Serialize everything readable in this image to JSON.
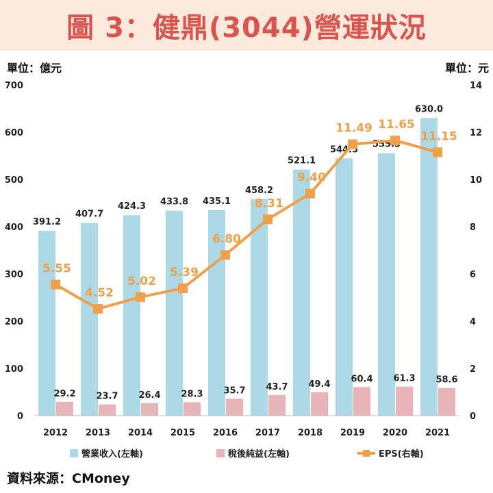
{
  "title": "圖 3：健鼎(3044)營運狀況",
  "unit_left": "單位：億元",
  "unit_right": "單位：元",
  "source": "資料來源：CMoney",
  "colors": {
    "revenue": "#add8e6",
    "net_income": "#e8b4b8",
    "eps": "#f0a04b"
  },
  "chart_data": {
    "type": "bar",
    "categories": [
      "2012",
      "2013",
      "2014",
      "2015",
      "2016",
      "2017",
      "2018",
      "2019",
      "2020",
      "2021"
    ],
    "series": [
      {
        "name": "營業收入(左軸)",
        "axis": "left",
        "type": "bar",
        "values": [
          391.2,
          407.7,
          424.3,
          433.8,
          435.1,
          458.2,
          521.1,
          544.5,
          555.5,
          630.0
        ],
        "labels": [
          "391.2",
          "407.7",
          "424.3",
          "433.8",
          "435.1",
          "458.2",
          "521.1",
          "544.5",
          "555.5",
          "630.0"
        ]
      },
      {
        "name": "稅後純益(左軸)",
        "axis": "left",
        "type": "bar",
        "values": [
          29.2,
          23.7,
          26.4,
          28.3,
          35.7,
          43.7,
          49.4,
          60.4,
          61.3,
          58.6
        ],
        "labels": [
          "29.2",
          "23.7",
          "26.4",
          "28.3",
          "35.7",
          "43.7",
          "49.4",
          "60.4",
          "61.3",
          "58.6"
        ]
      },
      {
        "name": "EPS(右軸)",
        "axis": "right",
        "type": "line",
        "values": [
          5.55,
          4.52,
          5.02,
          5.39,
          6.8,
          8.31,
          9.4,
          11.49,
          11.65,
          11.15
        ],
        "labels": [
          "5.55",
          "4.52",
          "5.02",
          "5.39",
          "6.80",
          "8.31",
          "9.40",
          "11.49",
          "11.65",
          "11.15"
        ]
      }
    ],
    "ylim_left": [
      0,
      700
    ],
    "yticks_left": [
      "0",
      "100",
      "200",
      "300",
      "400",
      "500",
      "600",
      "700"
    ],
    "ylim_right": [
      0,
      14
    ],
    "yticks_right": [
      "0",
      "2",
      "4",
      "6",
      "8",
      "10",
      "12",
      "14"
    ],
    "legend": [
      "營業收入(左軸)",
      "稅後純益(左軸)",
      "EPS(右軸)"
    ],
    "legend_position": "bottom",
    "grid": false
  }
}
